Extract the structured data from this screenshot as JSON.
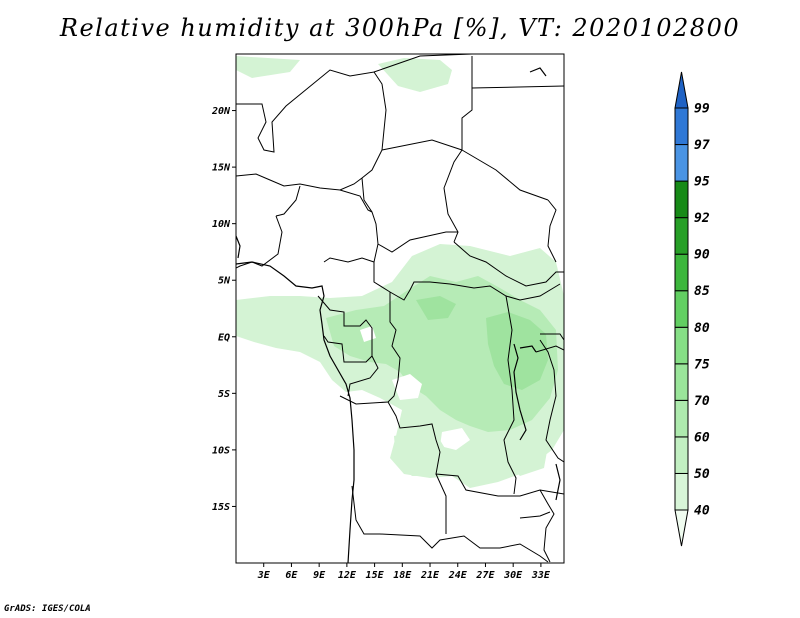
{
  "title": "Relative humidity at 300hPa [%], VT: 2020102800",
  "credit": "GrADS: IGES/COLA",
  "map": {
    "lon_range": [
      0,
      35.5
    ],
    "lat_range": [
      -20,
      25
    ],
    "lon_ticks": [
      {
        "value": 3,
        "label": "3E"
      },
      {
        "value": 6,
        "label": "6E"
      },
      {
        "value": 9,
        "label": "9E"
      },
      {
        "value": 12,
        "label": "12E"
      },
      {
        "value": 15,
        "label": "15E"
      },
      {
        "value": 18,
        "label": "18E"
      },
      {
        "value": 21,
        "label": "21E"
      },
      {
        "value": 24,
        "label": "24E"
      },
      {
        "value": 27,
        "label": "27E"
      },
      {
        "value": 30,
        "label": "30E"
      },
      {
        "value": 33,
        "label": "33E"
      }
    ],
    "lat_ticks": [
      {
        "value": 20,
        "label": "20N"
      },
      {
        "value": 15,
        "label": "15N"
      },
      {
        "value": 10,
        "label": "10N"
      },
      {
        "value": 5,
        "label": "5N"
      },
      {
        "value": 0,
        "label": "EQ"
      },
      {
        "value": -5,
        "label": "5S"
      },
      {
        "value": -10,
        "label": "10S"
      },
      {
        "value": -15,
        "label": "15S"
      }
    ]
  },
  "colorbar": {
    "levels": [
      "40",
      "50",
      "60",
      "70",
      "75",
      "80",
      "85",
      "90",
      "92",
      "95",
      "97",
      "99"
    ],
    "colors": [
      "#f0fcf0",
      "#d8f5d8",
      "#c2efc2",
      "#aeeaae",
      "#9ae59a",
      "#86df86",
      "#62cf62",
      "#3cb63c",
      "#279f27",
      "#178a17",
      "#4a94e4",
      "#2f78d6",
      "#1f62c4"
    ]
  },
  "fill_colors": {
    "light": "#d4f3d4",
    "medium": "#b6ebb6",
    "dark": "#9fe39f"
  }
}
